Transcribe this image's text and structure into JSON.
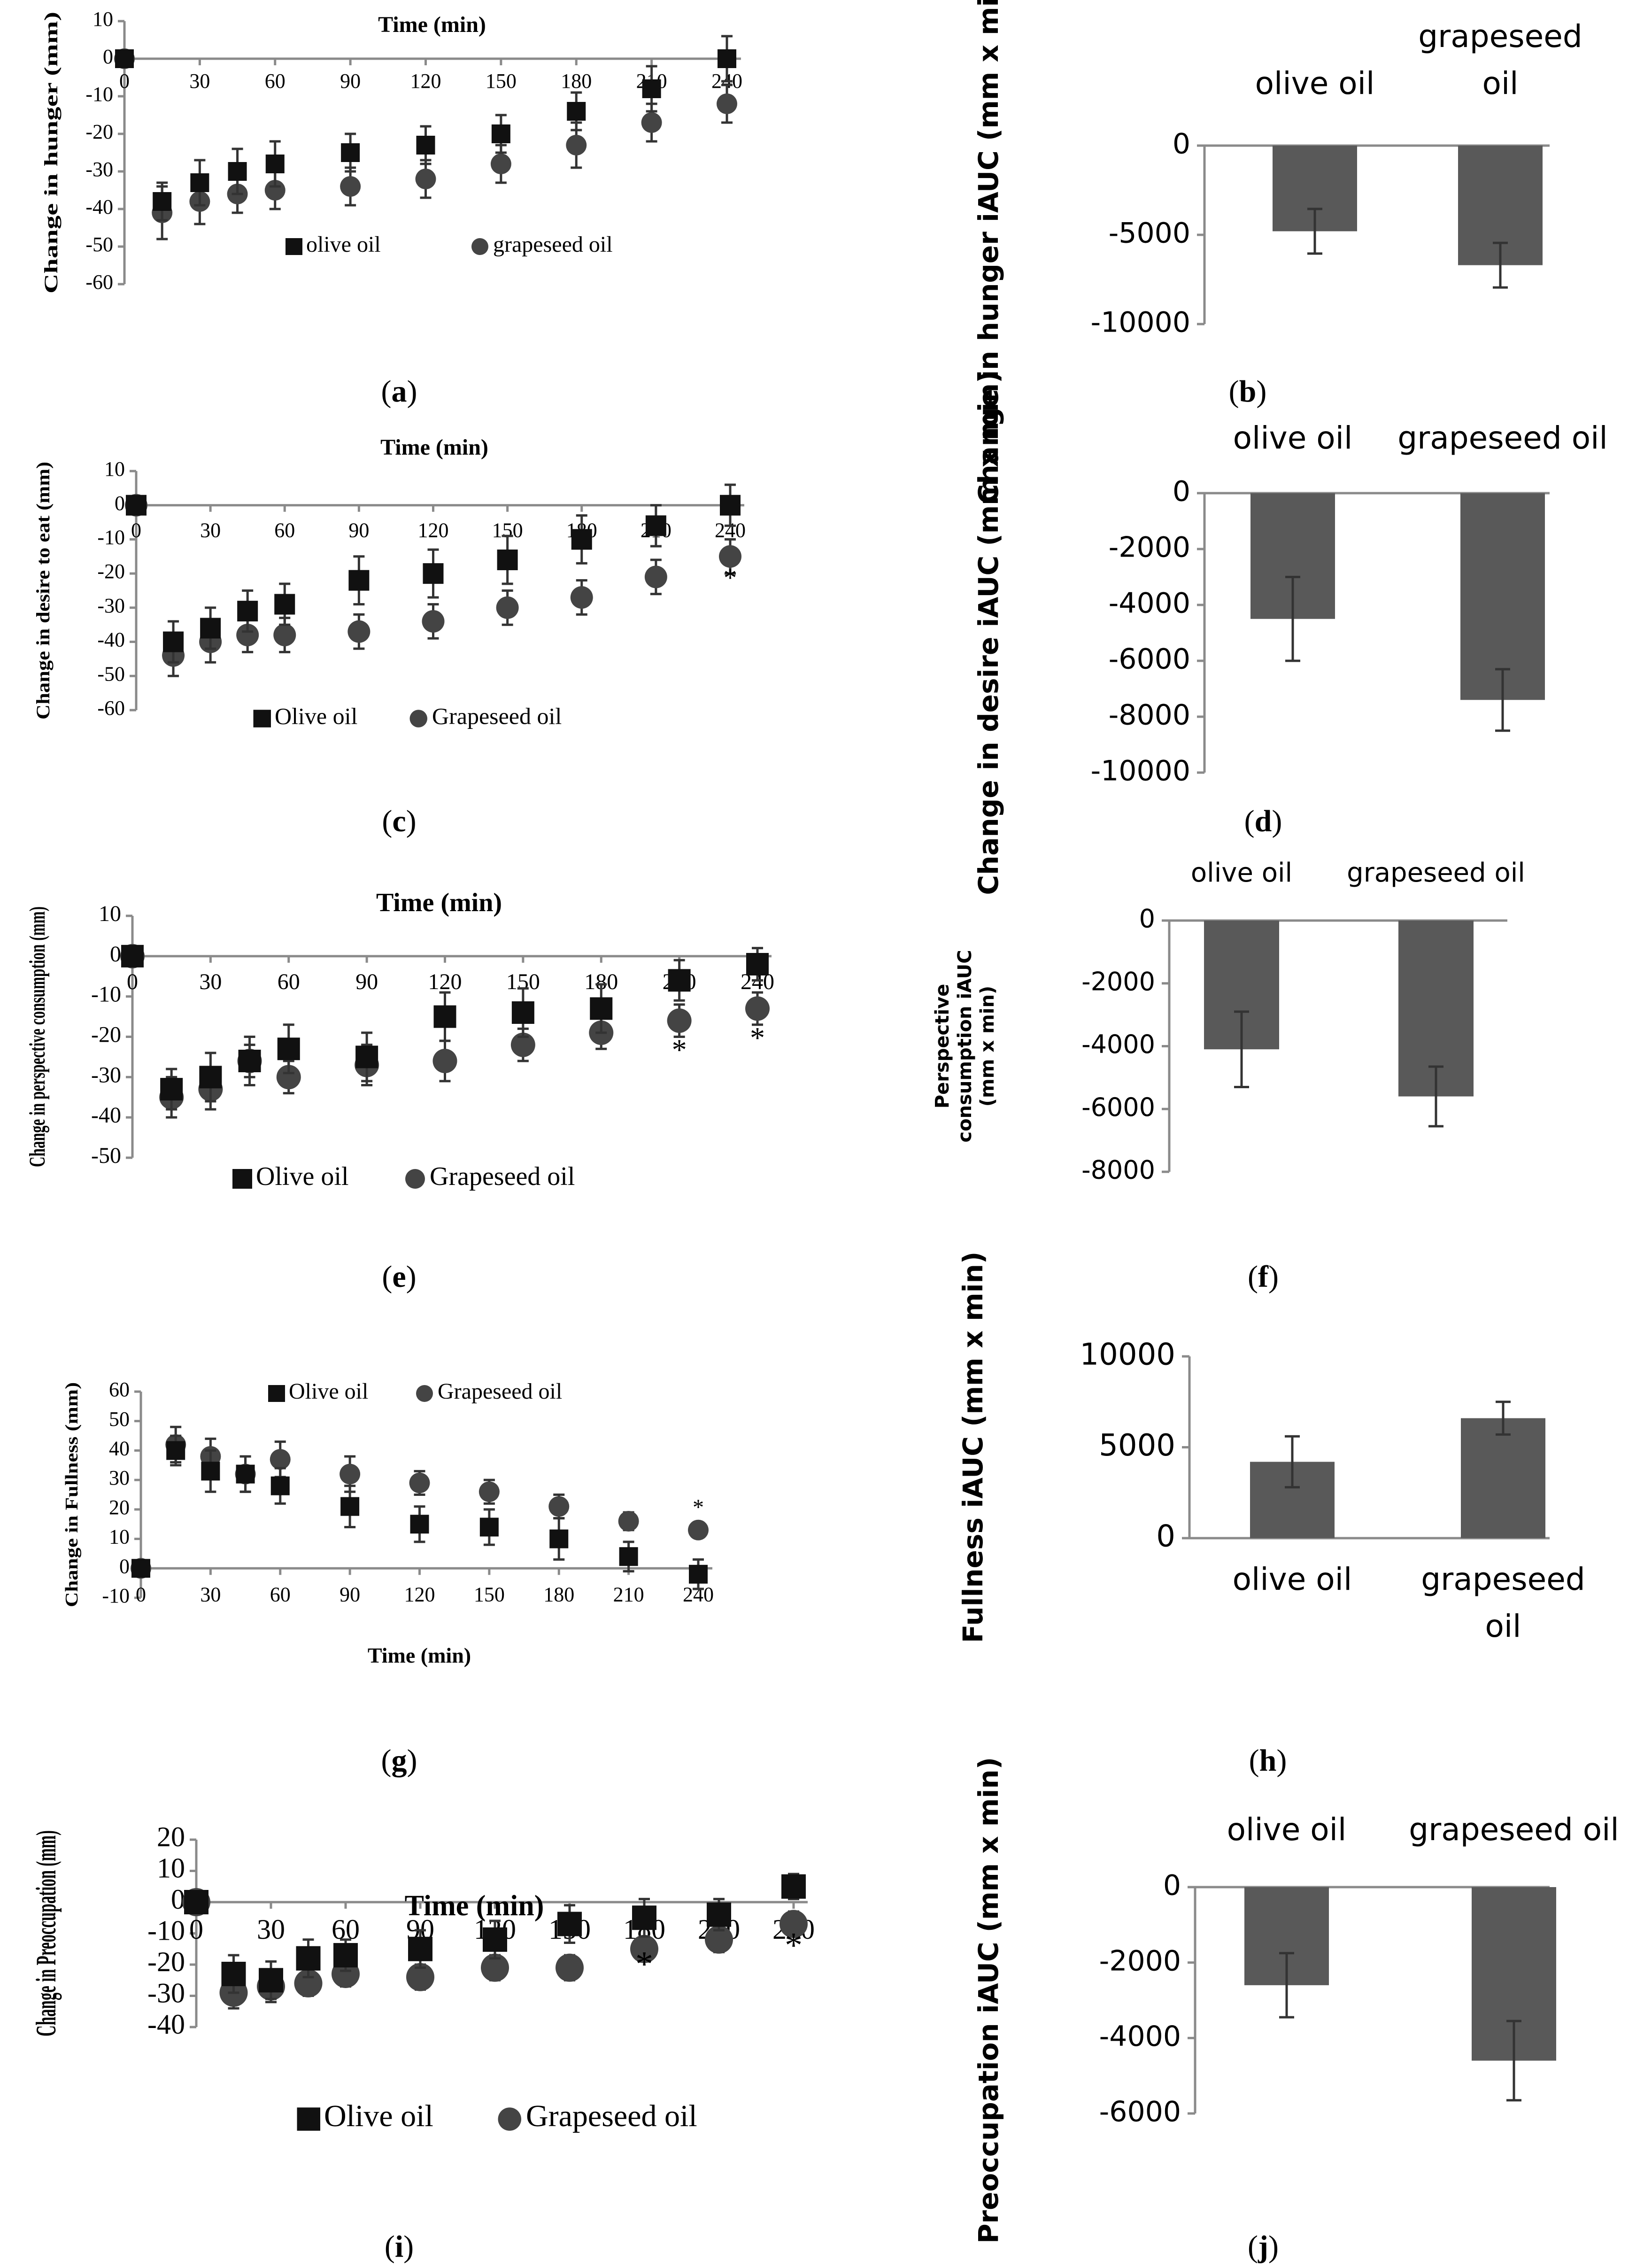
{
  "chart_data": [
    {
      "id": "a",
      "type": "scatter",
      "panel_label": "a",
      "title": "Time (min)",
      "xlabel": "Time (min)",
      "ylabel": "Change in hunger (mm)",
      "x": [
        0,
        15,
        30,
        45,
        60,
        90,
        120,
        150,
        180,
        210,
        240
      ],
      "xticks": [
        0,
        30,
        60,
        90,
        120,
        150,
        180,
        210,
        240
      ],
      "xtick_labels": [
        "0",
        "30",
        "60",
        "90",
        "120",
        "150",
        "180",
        "210",
        "240"
      ],
      "ylim": [
        -60,
        10
      ],
      "yticks": [
        10,
        0,
        -10,
        -20,
        -30,
        -40,
        -50,
        -60
      ],
      "ytick_labels": [
        "10",
        "0",
        "-10",
        "-20",
        "-30",
        "-40",
        "-50",
        "-60"
      ],
      "series": [
        {
          "name": "olive oil",
          "legend_label": "olive oil",
          "marker": "square",
          "values": [
            0,
            -38,
            -33,
            -30,
            -28,
            -25,
            -23,
            -20,
            -14,
            -8,
            0
          ],
          "errors": [
            0,
            5,
            6,
            6,
            6,
            5,
            5,
            5,
            5,
            6,
            6
          ]
        },
        {
          "name": "grapeseed oil",
          "legend_label": "grapeseed oil",
          "marker": "circle",
          "values": [
            0,
            -41,
            -38,
            -36,
            -35,
            -34,
            -32,
            -28,
            -23,
            -17,
            -12
          ],
          "errors": [
            0,
            7,
            6,
            5,
            5,
            5,
            5,
            5,
            6,
            5,
            5
          ]
        }
      ],
      "significance": []
    },
    {
      "id": "b",
      "type": "bar",
      "panel_label": "b",
      "ylabel": "Change in hunger iAUC (mm x min)",
      "categories": [
        "olive oil",
        "grapeseed\noil"
      ],
      "category_lines": [
        [
          "olive oil"
        ],
        [
          "grapeseed",
          "oil"
        ]
      ],
      "values": [
        -4800,
        -6700
      ],
      "errors": [
        1250,
        1250
      ],
      "ylim": [
        -10000,
        0
      ],
      "yticks": [
        0,
        -5000,
        -10000
      ],
      "ytick_labels": [
        "0",
        "-5000",
        "-10000"
      ]
    },
    {
      "id": "c",
      "type": "scatter",
      "panel_label": "c",
      "title": "Time (min)",
      "xlabel": "Time (min)",
      "ylabel": "Change in desire to eat (mm)",
      "x": [
        0,
        15,
        30,
        45,
        60,
        90,
        120,
        150,
        180,
        210,
        240
      ],
      "xticks": [
        0,
        30,
        60,
        90,
        120,
        150,
        180,
        210,
        240
      ],
      "xtick_labels": [
        "0",
        "30",
        "60",
        "90",
        "120",
        "150",
        "180",
        "210",
        "240"
      ],
      "ylim": [
        -60,
        10
      ],
      "yticks": [
        10,
        0,
        -10,
        -20,
        -30,
        -40,
        -50,
        -60
      ],
      "ytick_labels": [
        "10",
        "0",
        "-10",
        "-20",
        "-30",
        "-40",
        "-50",
        "-60"
      ],
      "series": [
        {
          "name": "Olive oil",
          "legend_label": "Olive oil",
          "marker": "square",
          "values": [
            0,
            -40,
            -36,
            -31,
            -29,
            -22,
            -20,
            -16,
            -10,
            -6,
            0
          ],
          "errors": [
            0,
            6,
            6,
            6,
            6,
            7,
            7,
            7,
            7,
            6,
            6
          ]
        },
        {
          "name": "Grapeseed oil",
          "legend_label": "Grapeseed oil",
          "marker": "circle",
          "values": [
            0,
            -44,
            -40,
            -38,
            -38,
            -37,
            -34,
            -30,
            -27,
            -21,
            -15
          ],
          "errors": [
            0,
            6,
            6,
            5,
            5,
            5,
            5,
            5,
            5,
            5,
            5
          ]
        }
      ],
      "significance": [
        {
          "x": 240,
          "y": -22,
          "text": "*"
        }
      ]
    },
    {
      "id": "d",
      "type": "bar",
      "panel_label": "d",
      "ylabel": "Change in desire iAUC (mm x min)",
      "categories": [
        "olive oil",
        "grapeseed oil"
      ],
      "category_lines": [
        [
          "olive oil"
        ],
        [
          "grapeseed oil"
        ]
      ],
      "values": [
        -4500,
        -7400
      ],
      "errors": [
        1500,
        1100
      ],
      "ylim": [
        -10000,
        0
      ],
      "yticks": [
        0,
        -2000,
        -4000,
        -6000,
        -8000,
        -10000
      ],
      "ytick_labels": [
        "0",
        "-2000",
        "-4000",
        "-6000",
        "-8000",
        "-10000"
      ]
    },
    {
      "id": "e",
      "type": "scatter",
      "panel_label": "e",
      "title": "Time (min)",
      "xlabel": "Time (min)",
      "ylabel": "Change in perspective consumption (mm)",
      "x": [
        0,
        15,
        30,
        45,
        60,
        90,
        120,
        150,
        180,
        210,
        240
      ],
      "xticks": [
        0,
        30,
        60,
        90,
        120,
        150,
        180,
        210,
        240
      ],
      "xtick_labels": [
        "0",
        "30",
        "60",
        "90",
        "120",
        "150",
        "180",
        "210",
        "240"
      ],
      "ylim": [
        -50,
        10
      ],
      "yticks": [
        10,
        0,
        -10,
        -20,
        -30,
        -40,
        -50
      ],
      "ytick_labels": [
        "10",
        "0",
        "-10",
        "-20",
        "-30",
        "-40",
        "-50"
      ],
      "series": [
        {
          "name": "Olive oil",
          "legend_label": "Olive oil",
          "marker": "square",
          "values": [
            0,
            -33,
            -30,
            -26,
            -23,
            -25,
            -15,
            -14,
            -13,
            -6,
            -2
          ],
          "errors": [
            0,
            5,
            6,
            6,
            6,
            6,
            6,
            6,
            6,
            5,
            4
          ]
        },
        {
          "name": "Grapeseed oil",
          "legend_label": "Grapeseed oil",
          "marker": "circle",
          "values": [
            0,
            -35,
            -33,
            -26,
            -30,
            -27,
            -26,
            -22,
            -19,
            -16,
            -13
          ],
          "errors": [
            0,
            5,
            5,
            4,
            4,
            5,
            5,
            4,
            4,
            4,
            4
          ]
        }
      ],
      "significance": [
        {
          "x": 210,
          "y": -24,
          "text": "*"
        },
        {
          "x": 240,
          "y": -21,
          "text": "*"
        }
      ]
    },
    {
      "id": "f",
      "type": "bar",
      "panel_label": "f",
      "ylabel": "Perspective consumption iAUC (mm x min)",
      "ylabel_lines": [
        "Perspective",
        "consumption iAUC",
        "(mm x min)"
      ],
      "categories": [
        "olive oil",
        "grapeseed oil"
      ],
      "category_lines": [
        [
          "olive oil"
        ],
        [
          "grapeseed oil"
        ]
      ],
      "values": [
        -4100,
        -5600
      ],
      "errors": [
        1200,
        950
      ],
      "ylim": [
        -8000,
        0
      ],
      "yticks": [
        0,
        -2000,
        -4000,
        -6000,
        -8000
      ],
      "ytick_labels": [
        "0",
        "-2000",
        "-4000",
        "-6000",
        "-8000"
      ]
    },
    {
      "id": "g",
      "type": "scatter",
      "panel_label": "g",
      "xlabel": "Time (min)",
      "ylabel": "Change in Fullness (mm)",
      "x": [
        0,
        15,
        30,
        45,
        60,
        90,
        120,
        150,
        180,
        210,
        240
      ],
      "xticks": [
        0,
        30,
        60,
        90,
        120,
        150,
        180,
        210,
        240
      ],
      "xtick_labels": [
        "0",
        "30",
        "60",
        "90",
        "120",
        "150",
        "180",
        "210",
        "240"
      ],
      "ylim": [
        -10,
        60
      ],
      "yticks": [
        60,
        50,
        40,
        30,
        20,
        10,
        0,
        -10
      ],
      "ytick_labels": [
        "60",
        "50",
        "40",
        "30",
        "20",
        "10",
        "0",
        "-10"
      ],
      "series": [
        {
          "name": "Olive oil",
          "legend_label": "Olive oil",
          "marker": "square",
          "values": [
            0,
            40,
            33,
            32,
            28,
            21,
            15,
            14,
            10,
            4,
            -2
          ],
          "errors": [
            0,
            5,
            7,
            6,
            6,
            7,
            6,
            6,
            7,
            5,
            5
          ]
        },
        {
          "name": "Grapeseed oil",
          "legend_label": "Grapeseed oil",
          "marker": "circle",
          "values": [
            0,
            42,
            38,
            32,
            37,
            32,
            29,
            26,
            21,
            16,
            13
          ],
          "errors": [
            0,
            6,
            6,
            6,
            6,
            6,
            4,
            4,
            4,
            3,
            2
          ]
        }
      ],
      "significance": [
        {
          "x": 240,
          "y": 20,
          "text": "*"
        }
      ]
    },
    {
      "id": "h",
      "type": "bar",
      "panel_label": "h",
      "ylabel": "Fullness iAUC (mm x min)",
      "categories": [
        "olive oil",
        "grapeseed\noil"
      ],
      "category_lines": [
        [
          "olive oil"
        ],
        [
          "grapeseed",
          "oil"
        ]
      ],
      "values": [
        4200,
        6600
      ],
      "errors": [
        1400,
        900
      ],
      "ylim": [
        0,
        10000
      ],
      "yticks": [
        10000,
        5000,
        0
      ],
      "ytick_labels": [
        "10000",
        "5000",
        "0"
      ]
    },
    {
      "id": "i",
      "type": "scatter",
      "panel_label": "i",
      "title": "Time (min)",
      "xlabel": "Time (min)",
      "ylabel": "Change in Preoccupation (mm)",
      "x": [
        0,
        15,
        30,
        45,
        60,
        90,
        120,
        150,
        180,
        210,
        240
      ],
      "xticks": [
        0,
        30,
        60,
        90,
        120,
        150,
        180,
        210,
        240
      ],
      "xtick_labels": [
        "0",
        "30",
        "60",
        "90",
        "120",
        "150",
        "180",
        "210",
        "240"
      ],
      "ylim": [
        -40,
        20
      ],
      "yticks": [
        20,
        10,
        0,
        -10,
        -20,
        -30,
        -40
      ],
      "ytick_labels": [
        "20",
        "10",
        "0",
        "-10",
        "-20",
        "-30",
        "-40"
      ],
      "series": [
        {
          "name": "Olive oil",
          "legend_label": "Olive oil",
          "marker": "square",
          "values": [
            0,
            -23,
            -25,
            -18,
            -17,
            -15,
            -12,
            -7,
            -5,
            -4,
            5
          ],
          "errors": [
            0,
            6,
            6,
            6,
            5,
            6,
            6,
            6,
            6,
            5,
            4
          ]
        },
        {
          "name": "Grapeseed oil",
          "legend_label": "Grapeseed oil",
          "marker": "circle",
          "values": [
            0,
            -29,
            -27,
            -26,
            -23,
            -24,
            -21,
            -21,
            -15,
            -12,
            -7
          ],
          "errors": [
            0,
            5,
            5,
            4,
            4,
            4,
            4,
            4,
            4,
            4,
            4
          ]
        }
      ],
      "significance": [
        {
          "x": 180,
          "y": -21,
          "text": "*"
        },
        {
          "x": 240,
          "y": -15,
          "text": "*"
        }
      ]
    },
    {
      "id": "j",
      "type": "bar",
      "panel_label": "j",
      "ylabel": "Preoccupation iAUC (mm x min)",
      "categories": [
        "olive oil",
        "grapeseed oil"
      ],
      "category_lines": [
        [
          "olive oil"
        ],
        [
          "grapeseed oil"
        ]
      ],
      "values": [
        -2600,
        -4600
      ],
      "errors": [
        850,
        1050
      ],
      "ylim": [
        -6000,
        0
      ],
      "yticks": [
        0,
        -2000,
        -4000,
        -6000
      ],
      "ytick_labels": [
        "0",
        "-2000",
        "-4000",
        "-6000"
      ]
    }
  ],
  "colors": {
    "marker": "#111111",
    "circle": "#444444",
    "bar": "#595959",
    "axis": "#8a8a8a",
    "error": "#333333",
    "text": "#000000"
  }
}
